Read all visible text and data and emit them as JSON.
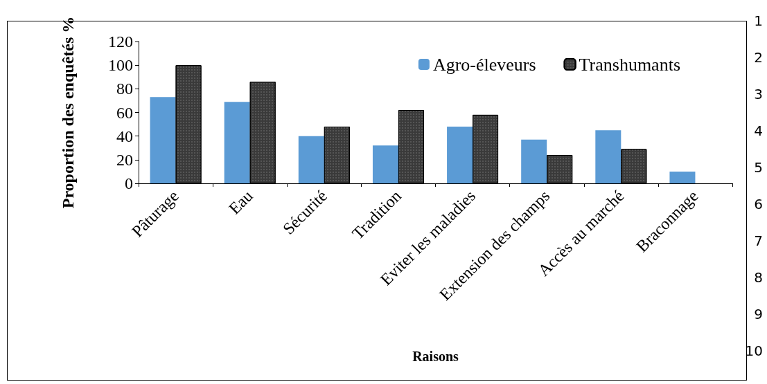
{
  "chart_data": {
    "type": "bar",
    "xlabel": "Raisons",
    "ylabel": "Proportion des enquêtés %",
    "categories": [
      "Pâturage",
      "Eau",
      "Sécurité",
      "Tradition",
      "Eviter les maladies",
      "Extension des champs",
      "Accès au marché",
      "Braconnage"
    ],
    "series": [
      {
        "name": "Agro-éleveurs",
        "color": "#5b9bd5",
        "values": [
          73,
          69,
          40,
          32,
          48,
          37,
          45,
          10
        ]
      },
      {
        "name": "Transhumants",
        "color": "#3a3a3a",
        "values": [
          100,
          86,
          48,
          62,
          58,
          24,
          29,
          null
        ]
      }
    ],
    "ylim": [
      0,
      120
    ],
    "yticks": [
      0,
      20,
      40,
      60,
      80,
      100,
      120
    ],
    "grid": false,
    "legend": "top right",
    "annotations": [
      "1",
      "2",
      "3",
      "4",
      "5",
      "6",
      "7",
      "8",
      "9",
      "10"
    ]
  }
}
